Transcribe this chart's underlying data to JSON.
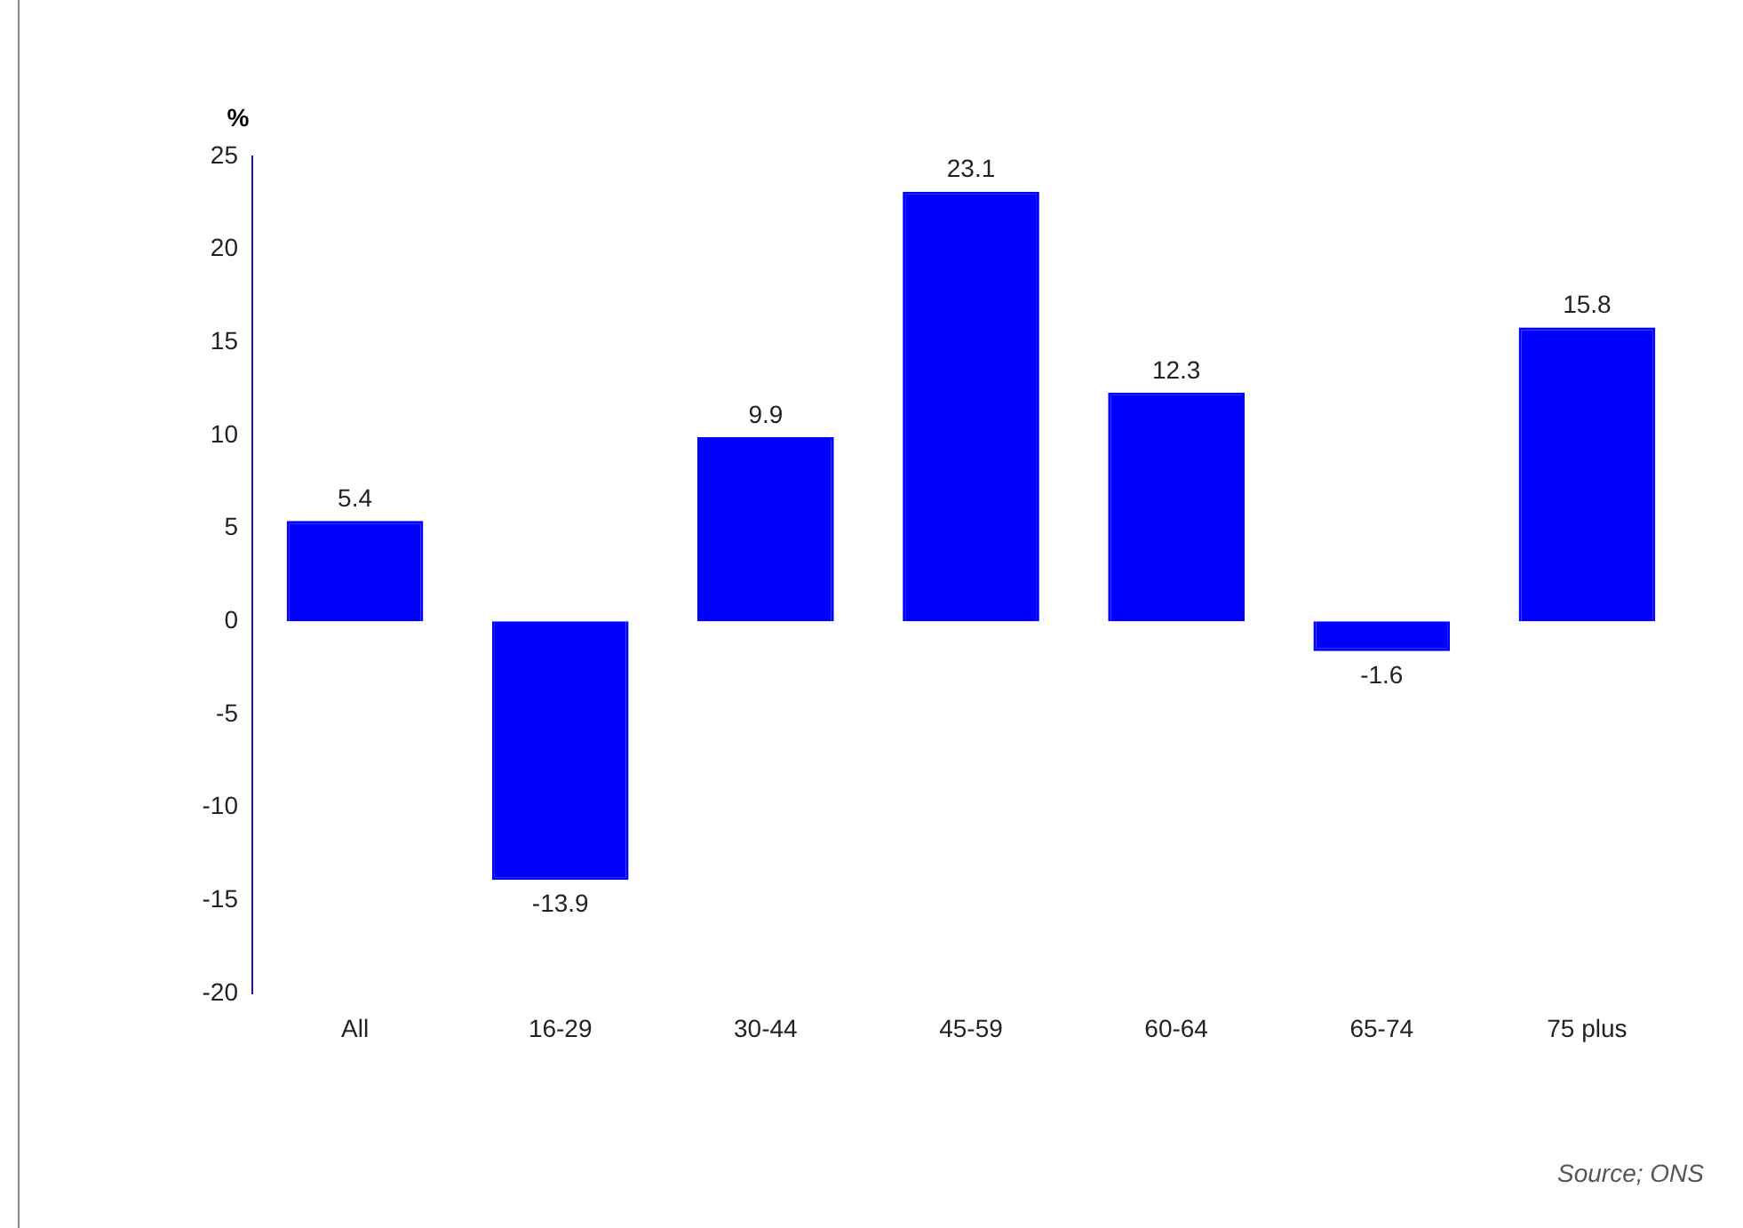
{
  "chart_data": {
    "type": "bar",
    "ylabel": "%",
    "categories": [
      "All",
      "16-29",
      "30-44",
      "45-59",
      "60-64",
      "65-74",
      "75 plus"
    ],
    "values": [
      5.4,
      -13.9,
      9.9,
      23.1,
      12.3,
      -1.6,
      15.8
    ],
    "color": "#0000ff",
    "ylim": [
      -20,
      25
    ],
    "yticks": [
      -20,
      -15,
      -10,
      -5,
      0,
      5,
      10,
      15,
      20,
      25
    ],
    "grid": false,
    "legend": false,
    "data_labels": true,
    "annotations": [
      "Source; ONS"
    ]
  }
}
